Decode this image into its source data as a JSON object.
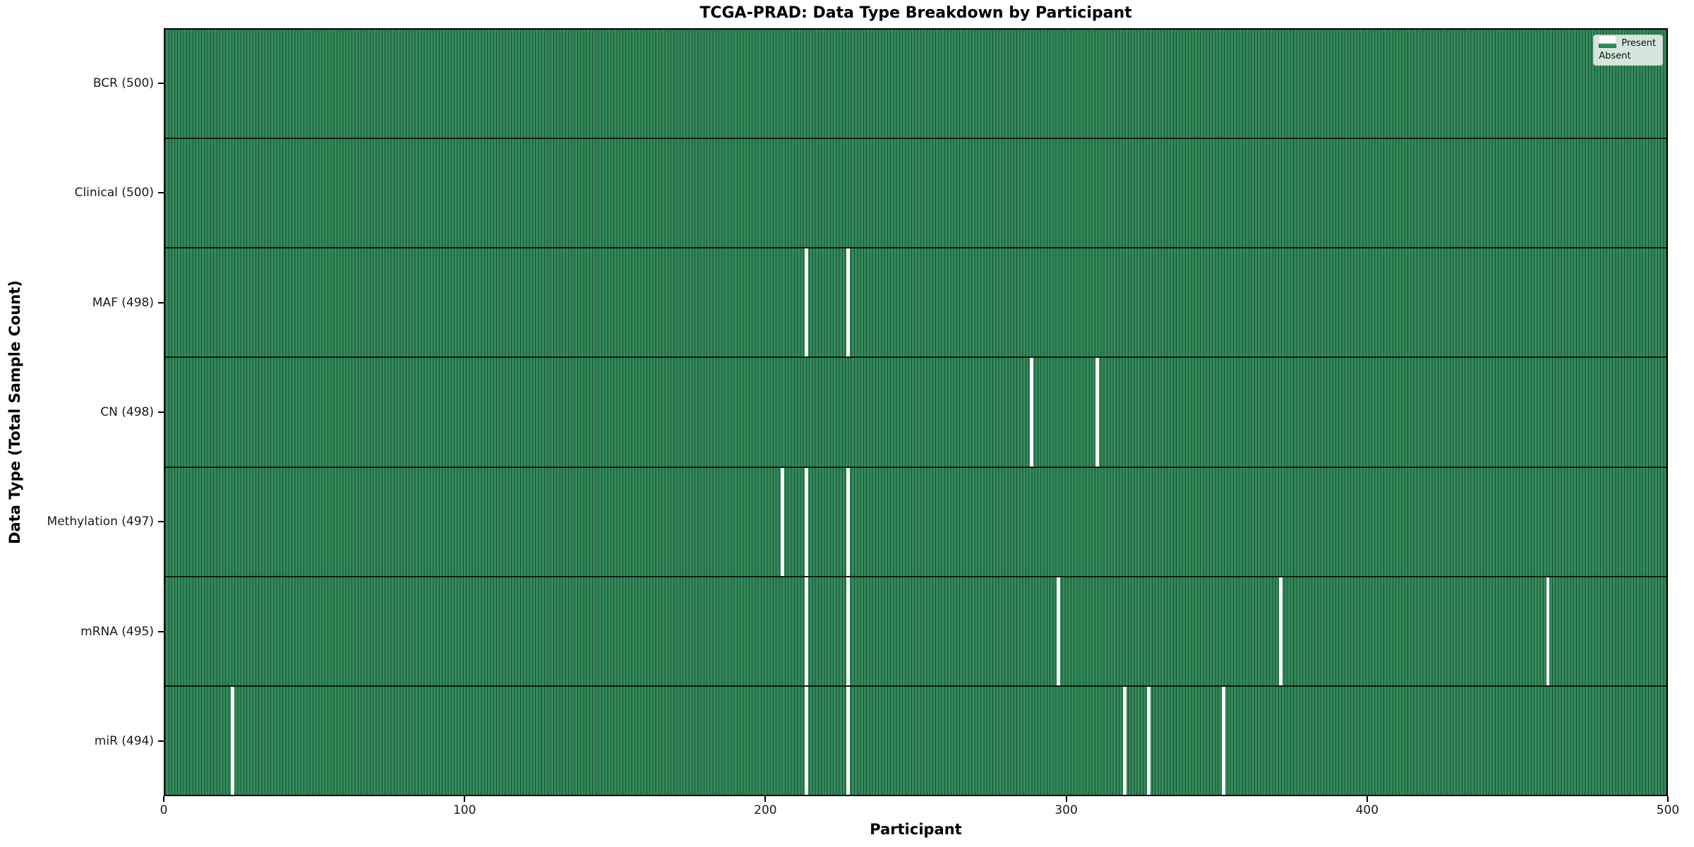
{
  "title": "TCGA-PRAD: Data Type Breakdown by Participant",
  "xlabel": "Participant",
  "ylabel": "Data Type (Total Sample Count)",
  "legend": {
    "present_label": "Present",
    "absent_label": "Absent"
  },
  "colors": {
    "present_fill": "#2e8b57",
    "present_edge": "#1b5134",
    "absent_fill": "#ffffff",
    "row_divider": "#000000"
  },
  "chart_data": {
    "type": "heatmap",
    "title": "TCGA-PRAD: Data Type Breakdown by Participant",
    "xlabel": "Participant",
    "ylabel": "Data Type (Total Sample Count)",
    "legend": [
      "Present",
      "Absent"
    ],
    "legend_position": "upper right",
    "grid": false,
    "n_participants": 500,
    "x_range": [
      0,
      500
    ],
    "x_ticks": [
      0,
      100,
      200,
      300,
      400,
      500
    ],
    "rows": [
      {
        "name": "BCR",
        "label": "BCR (500)",
        "total": 500,
        "absent_participants": []
      },
      {
        "name": "Clinical",
        "label": "Clinical (500)",
        "total": 500,
        "absent_participants": []
      },
      {
        "name": "MAF",
        "label": "MAF (498)",
        "total": 498,
        "absent_participants": [
          213,
          227
        ]
      },
      {
        "name": "CN",
        "label": "CN (498)",
        "total": 498,
        "absent_participants": [
          288,
          310
        ]
      },
      {
        "name": "Methylation",
        "label": "Methylation (497)",
        "total": 497,
        "absent_participants": [
          205,
          213,
          227
        ]
      },
      {
        "name": "mRNA",
        "label": "mRNA (495)",
        "total": 495,
        "absent_participants": [
          213,
          227,
          297,
          371,
          460
        ]
      },
      {
        "name": "miR",
        "label": "miR (494)",
        "total": 494,
        "absent_participants": [
          22,
          213,
          227,
          319,
          327,
          352
        ]
      }
    ]
  }
}
